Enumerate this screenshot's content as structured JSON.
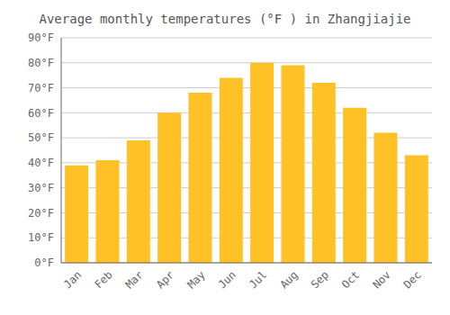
{
  "chart_data": {
    "type": "bar",
    "title": "Average monthly temperatures (°F ) in Zhangjiajie",
    "categories": [
      "Jan",
      "Feb",
      "Mar",
      "Apr",
      "May",
      "Jun",
      "Jul",
      "Aug",
      "Sep",
      "Oct",
      "Nov",
      "Dec"
    ],
    "values": [
      39,
      41,
      49,
      60,
      68,
      74,
      80,
      79,
      72,
      62,
      52,
      43
    ],
    "color": "#FFC125",
    "ylim": [
      0,
      90
    ],
    "yticks": [
      {
        "value": 0,
        "label": "0°F"
      },
      {
        "value": 10,
        "label": "10°F"
      },
      {
        "value": 20,
        "label": "20°F"
      },
      {
        "value": 30,
        "label": "30°F"
      },
      {
        "value": 40,
        "label": "40°F"
      },
      {
        "value": 50,
        "label": "50°F"
      },
      {
        "value": 60,
        "label": "60°F"
      },
      {
        "value": 70,
        "label": "70°F"
      },
      {
        "value": 80,
        "label": "80°F"
      },
      {
        "value": 90,
        "label": "90°F"
      }
    ],
    "grid": true
  }
}
